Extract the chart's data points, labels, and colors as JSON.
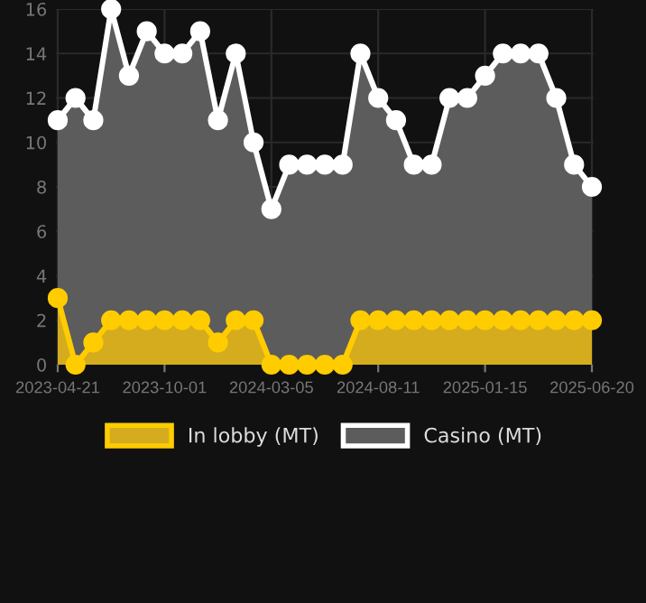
{
  "chart_data": {
    "type": "area",
    "categories": [
      "2023-04-21",
      null,
      null,
      null,
      null,
      null,
      "2023-10-01",
      null,
      null,
      null,
      null,
      null,
      "2024-03-05",
      null,
      null,
      null,
      null,
      null,
      "2024-08-11",
      null,
      null,
      null,
      null,
      null,
      "2025-01-15",
      null,
      null,
      null,
      null,
      null,
      "2025-06-20"
    ],
    "series": [
      {
        "name": "In lobby (MT)",
        "color": "#ffcc00",
        "values": [
          3,
          0,
          1,
          2,
          2,
          2,
          2,
          2,
          2,
          1,
          2,
          2,
          0,
          0,
          0,
          0,
          0,
          2,
          2,
          2,
          2,
          2,
          2,
          2,
          2,
          2,
          2,
          2,
          2,
          2,
          2
        ]
      },
      {
        "name": "Casino (MT)",
        "color": "#ffffff",
        "values": [
          11,
          12,
          11,
          16,
          13,
          15,
          14,
          14,
          15,
          11,
          14,
          10,
          7,
          9,
          9,
          9,
          9,
          14,
          12,
          11,
          9,
          9,
          12,
          12,
          13,
          14,
          14,
          14,
          12,
          9,
          8
        ]
      }
    ],
    "ylim": [
      0,
      16
    ],
    "yticks": [
      0,
      2,
      4,
      6,
      8,
      10,
      12,
      14,
      16
    ],
    "grid": true,
    "legend": "bottom",
    "marker": "circle",
    "line_style": "solid"
  }
}
